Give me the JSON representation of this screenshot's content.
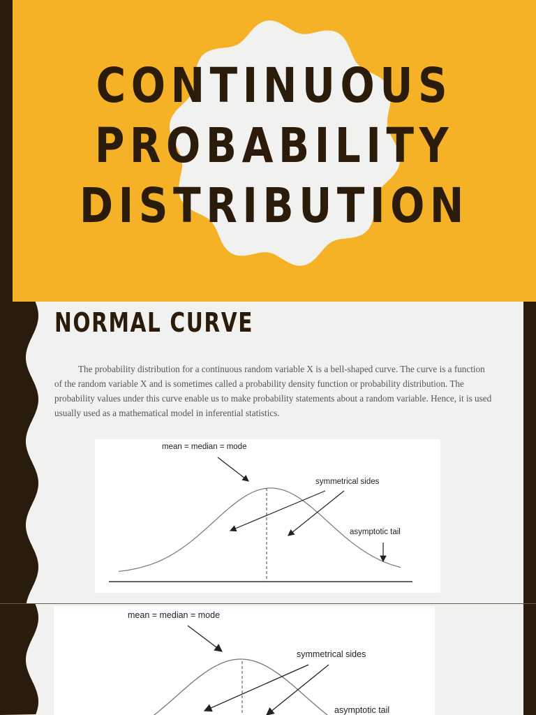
{
  "slide1": {
    "title_lines": [
      "CONTINUOUS",
      "PROBABILITY",
      "DISTRIBUTION"
    ],
    "colors": {
      "background": "#f6b226",
      "blob": "#f1f1ef",
      "text": "#2b1b0a",
      "edge": "#2a1c0c"
    }
  },
  "slide2": {
    "heading": "NORMAL CURVE",
    "paragraph": "The probability distribution for a continuous random variable X is a bell-shaped curve. The curve is a function of the random variable X and is sometimes called a probability density function or probability distribution. The probability values under this curve enable us to make probability statements about a random variable. Hence, it is used usually used as a mathematical model in inferential statistics.",
    "figure": {
      "label_center": "mean = median = mode",
      "label_sides": "symmetrical sides",
      "label_tail": "asymptotic tail"
    }
  },
  "slide3": {
    "figure": {
      "label_center": "mean = median = mode",
      "label_sides": "symmetrical sides",
      "label_tail": "asymptotic tail"
    }
  }
}
